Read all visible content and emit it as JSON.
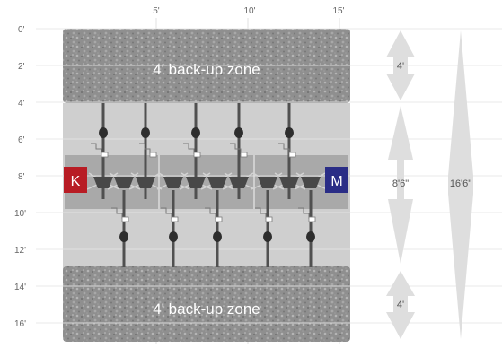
{
  "scale": {
    "top_labels": [
      "5'",
      "10'",
      "15'"
    ],
    "left_labels": [
      "0'",
      "2'",
      "4'",
      "6'",
      "8'",
      "10'",
      "12'",
      "14'",
      "16'"
    ]
  },
  "zones": {
    "top_backup": "4' back-up zone",
    "bottom_backup": "4' back-up zone"
  },
  "markers": {
    "left": {
      "label": "K",
      "color": "#b81c24"
    },
    "right": {
      "label": "M",
      "color": "#2a2d86"
    }
  },
  "dimensions": {
    "top_span": "4'",
    "middle_span": "8'6\"",
    "bottom_span": "4'",
    "total_span": "16'6\""
  },
  "colors": {
    "gravel": "#8f8f8f",
    "work_area": "#cfcfcf",
    "center_band": "#a9a9a9",
    "grid_line": "#e2e2e2",
    "arrow": "#dedede",
    "equipment": "#505050"
  }
}
